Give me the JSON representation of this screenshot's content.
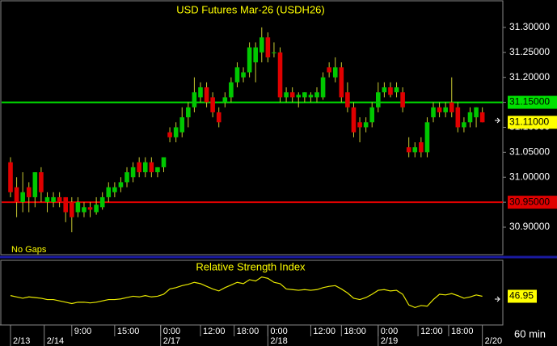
{
  "chart_data": {
    "type": "candlestick",
    "title": "USD Futures Mar-26 (USDH26)",
    "note": "No Gaps",
    "interval": "60 min",
    "up_color": "#00c800",
    "down_color": "#e00000",
    "wick_color": "#c8c832",
    "open": [
      31.03,
      30.98,
      30.95,
      30.98,
      30.96,
      31.01,
      30.95,
      30.95,
      30.96,
      30.96,
      30.95,
      30.93,
      30.93,
      30.94,
      30.93,
      30.94,
      30.96,
      30.97,
      30.98,
      30.99,
      31.0,
      31.03,
      31.01,
      31.03,
      31.01,
      31.02,
      31.09,
      31.08,
      31.09,
      31.12,
      31.14,
      31.16,
      31.18,
      31.16,
      31.13,
      31.15,
      31.16,
      31.19,
      31.2,
      31.21,
      31.23,
      31.25,
      31.28,
      31.25,
      31.25,
      31.16,
      31.17,
      31.16,
      31.16,
      31.16,
      31.16,
      31.16,
      31.22,
      31.2,
      31.22,
      31.17,
      31.14,
      31.11,
      31.1,
      31.11,
      31.14,
      31.17,
      31.18,
      31.17,
      31.17,
      31.06,
      31.05,
      31.07,
      31.05,
      31.12,
      31.14,
      31.13,
      31.15,
      31.14,
      31.1,
      31.11,
      31.12,
      31.13
    ],
    "high": [
      31.04,
      31.0,
      31.01,
      30.99,
      31.01,
      31.02,
      30.97,
      30.97,
      30.97,
      30.96,
      30.96,
      30.96,
      30.95,
      30.95,
      30.96,
      30.97,
      30.99,
      30.99,
      31.0,
      31.02,
      31.03,
      31.04,
      31.04,
      31.04,
      31.02,
      31.04,
      31.1,
      31.11,
      31.14,
      31.15,
      31.2,
      31.19,
      31.19,
      31.17,
      31.14,
      31.17,
      31.2,
      31.23,
      31.22,
      31.27,
      31.27,
      31.3,
      31.29,
      31.27,
      31.26,
      31.18,
      31.18,
      31.17,
      31.17,
      31.17,
      31.18,
      31.21,
      31.23,
      31.24,
      31.23,
      31.19,
      31.15,
      31.12,
      31.12,
      31.15,
      31.19,
      31.19,
      31.19,
      31.19,
      31.18,
      31.08,
      31.07,
      31.08,
      31.12,
      31.15,
      31.15,
      31.15,
      31.2,
      31.15,
      31.12,
      31.14,
      31.14,
      31.14
    ],
    "low": [
      30.96,
      30.92,
      30.93,
      30.93,
      30.94,
      30.95,
      30.93,
      30.94,
      30.94,
      30.91,
      30.89,
      30.92,
      30.92,
      30.92,
      30.925,
      30.935,
      30.95,
      30.96,
      30.97,
      30.98,
      30.99,
      31.0,
      31.0,
      31.0,
      31.0,
      31.01,
      31.07,
      31.07,
      31.08,
      31.1,
      31.13,
      31.15,
      31.14,
      31.12,
      31.1,
      31.14,
      31.15,
      31.18,
      31.19,
      31.2,
      31.19,
      31.23,
      31.23,
      31.24,
      31.15,
      31.15,
      31.15,
      31.14,
      31.15,
      31.15,
      31.15,
      31.155,
      31.2,
      31.19,
      31.15,
      31.13,
      31.08,
      31.07,
      31.09,
      31.1,
      31.13,
      31.16,
      31.16,
      31.16,
      31.13,
      31.04,
      31.04,
      31.04,
      31.04,
      31.11,
      31.12,
      31.12,
      31.12,
      31.09,
      31.09,
      31.1,
      31.1,
      31.11
    ],
    "close": [
      30.97,
      30.95,
      30.97,
      30.96,
      31.01,
      30.97,
      30.96,
      30.96,
      30.95,
      30.93,
      30.92,
      30.95,
      30.94,
      30.935,
      30.945,
      30.96,
      30.98,
      30.98,
      30.99,
      31.01,
      31.02,
      31.01,
      31.03,
      31.01,
      31.02,
      31.04,
      31.08,
      31.1,
      31.12,
      31.14,
      31.17,
      31.18,
      31.15,
      31.13,
      31.11,
      31.16,
      31.19,
      31.22,
      31.21,
      31.26,
      31.26,
      31.28,
      31.24,
      31.25,
      31.16,
      31.17,
      31.16,
      31.165,
      31.17,
      31.165,
      31.17,
      31.2,
      31.21,
      31.22,
      31.16,
      31.14,
      31.09,
      31.1,
      31.11,
      31.14,
      31.17,
      31.18,
      31.165,
      31.18,
      31.14,
      31.05,
      31.06,
      31.05,
      31.11,
      31.14,
      31.13,
      31.14,
      31.13,
      31.1,
      31.11,
      31.13,
      31.14,
      31.11
    ],
    "ylim": [
      30.845,
      31.35
    ],
    "yticks": [
      {
        "value": 30.9,
        "label": "30.90000"
      },
      {
        "value": 30.95,
        "label": "30.95000"
      },
      {
        "value": 31.0,
        "label": "31.00000"
      },
      {
        "value": 31.05,
        "label": "31.05000"
      },
      {
        "value": 31.1,
        "label": "31.10000"
      },
      {
        "value": 31.15,
        "label": "31.15000"
      },
      {
        "value": 31.2,
        "label": "31.20000"
      },
      {
        "value": 31.25,
        "label": "31.25000"
      },
      {
        "value": 31.3,
        "label": "31.30000"
      }
    ],
    "lines": [
      {
        "value": 31.15,
        "label": "31.15000",
        "color": "#00e000"
      },
      {
        "value": 30.95,
        "label": "30.95000",
        "color": "#e00000"
      }
    ],
    "last_price": {
      "value": 31.11,
      "label": "31.11000",
      "color": "#ffff00"
    },
    "time_ticks": [
      {
        "value": 10,
        "label": "9:00"
      },
      {
        "value": 17,
        "label": "15:00"
      },
      {
        "value": 24.5,
        "label": "0:00"
      },
      {
        "value": 31,
        "label": "12:00"
      },
      {
        "value": 36.5,
        "label": "18:00"
      },
      {
        "value": 42,
        "label": "0:00"
      },
      {
        "value": 49,
        "label": "12:00"
      },
      {
        "value": 54,
        "label": "18:00"
      },
      {
        "value": 60,
        "label": "0:00"
      },
      {
        "value": 66.5,
        "label": "12:00"
      },
      {
        "value": 71.5,
        "label": "18:00"
      }
    ],
    "date_ticks": [
      {
        "value": 0,
        "label": "2/13"
      },
      {
        "value": 5.5,
        "label": "2/14"
      },
      {
        "value": 24.5,
        "label": "2/17"
      },
      {
        "value": 42,
        "label": "2/18"
      },
      {
        "value": 60,
        "label": "2/19"
      },
      {
        "value": 77,
        "label": "2/20"
      }
    ],
    "rsi": {
      "title": "Relative Strength Index",
      "color": "#e8e800",
      "ylim": [
        0,
        100
      ],
      "values": [
        48,
        46,
        44,
        46,
        45,
        44,
        42,
        42,
        40,
        38,
        36,
        38,
        38,
        37,
        38,
        40,
        42,
        42,
        43,
        45,
        47,
        46,
        48,
        46,
        47,
        50,
        58,
        60,
        63,
        65,
        68,
        66,
        62,
        58,
        55,
        60,
        64,
        68,
        66,
        72,
        70,
        76,
        74,
        68,
        66,
        58,
        57,
        56,
        57,
        56,
        57,
        60,
        62,
        63,
        58,
        52,
        44,
        42,
        45,
        50,
        56,
        57,
        55,
        56,
        50,
        34,
        30,
        33,
        32,
        42,
        50,
        49,
        51,
        48,
        44,
        46,
        49,
        46.95
      ],
      "last": {
        "value": 46.95,
        "label": "46.95",
        "color": "#ffff00"
      }
    }
  }
}
